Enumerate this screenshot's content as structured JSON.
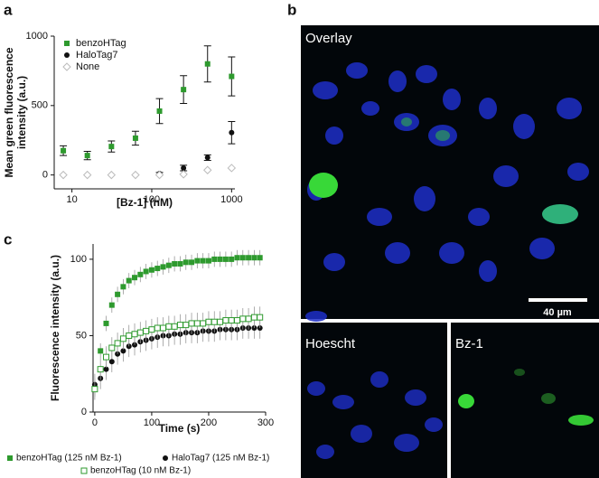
{
  "panels": {
    "a": "a",
    "b": "b",
    "c": "c"
  },
  "images": {
    "overlay": "Overlay",
    "hoechst": "Hoescht",
    "bz1": "Bz-1",
    "scale_bar": "40 µm"
  },
  "chart_data": [
    {
      "type": "scatter",
      "xlabel": "[Bz-1] (nM)",
      "ylabel": [
        "Mean green fluorescence",
        "intensity (a.u.)"
      ],
      "log_x": true,
      "xlim": [
        6,
        1100
      ],
      "xticks": [
        10,
        100,
        1000
      ],
      "ylim": [
        -100,
        1000
      ],
      "yticks": [
        0,
        500,
        1000
      ],
      "x": [
        7.8,
        15.6,
        31.25,
        62.5,
        125,
        250,
        500,
        1000
      ],
      "legend": "upper-left",
      "series": [
        {
          "name": "benzoHTag",
          "color": "#2e9a2e",
          "marker": "square",
          "values": [
            175,
            140,
            205,
            265,
            460,
            615,
            800,
            710
          ],
          "errors": [
            35,
            30,
            40,
            50,
            90,
            100,
            130,
            140
          ]
        },
        {
          "name": "HaloTag7",
          "color": "#111111",
          "marker": "circle",
          "values": [
            0,
            0,
            0,
            0,
            10,
            50,
            125,
            305
          ],
          "errors": [
            0,
            0,
            0,
            0,
            8,
            20,
            20,
            80
          ]
        },
        {
          "name": "None",
          "color": "#bbbbbb",
          "marker": "diamond",
          "values": [
            0,
            0,
            0,
            0,
            0,
            5,
            35,
            50
          ],
          "errors": [
            0,
            0,
            0,
            0,
            0,
            0,
            0,
            0
          ]
        }
      ]
    },
    {
      "type": "scatter",
      "xlabel": "Time (s)",
      "ylabel": [
        "Fluorescence intensity (a.u.)"
      ],
      "log_x": false,
      "xlim": [
        -3,
        300
      ],
      "xticks": [
        0,
        100,
        200,
        300
      ],
      "ylim": [
        0,
        110
      ],
      "yticks": [
        0,
        50,
        100
      ],
      "legend": "below",
      "x": [
        0,
        10,
        20,
        30,
        40,
        50,
        60,
        70,
        80,
        90,
        100,
        110,
        120,
        130,
        140,
        150,
        160,
        170,
        180,
        190,
        200,
        210,
        220,
        230,
        240,
        250,
        260,
        270,
        280,
        290
      ],
      "series": [
        {
          "name": "benzoHTag (125 nM Bz-1)",
          "color": "#2e9a2e",
          "marker": "square",
          "values": [
            15,
            40,
            58,
            70,
            77,
            82,
            86,
            88,
            90,
            92,
            93,
            94,
            95,
            96,
            97,
            97,
            98,
            98,
            99,
            99,
            99,
            100,
            100,
            100,
            100,
            101,
            101,
            101,
            101,
            101
          ],
          "errors": [
            5,
            5,
            5,
            5,
            5,
            5,
            5,
            5,
            5,
            5,
            5,
            5,
            5,
            5,
            5,
            5,
            5,
            5,
            5,
            5,
            5,
            5,
            5,
            5,
            5,
            5,
            5,
            5,
            5,
            5
          ]
        },
        {
          "name": "HaloTag7 (125 nM Bz-1)",
          "color": "#111111",
          "marker": "circle",
          "values": [
            18,
            22,
            28,
            33,
            38,
            40,
            43,
            44,
            46,
            47,
            48,
            49,
            50,
            50,
            51,
            51,
            52,
            52,
            52,
            53,
            53,
            53,
            54,
            54,
            54,
            54,
            55,
            55,
            55,
            55
          ],
          "errors": [
            7,
            7,
            7,
            7,
            7,
            7,
            7,
            7,
            7,
            7,
            7,
            7,
            7,
            7,
            7,
            7,
            7,
            7,
            7,
            7,
            7,
            7,
            7,
            7,
            7,
            7,
            7,
            7,
            7,
            7
          ]
        },
        {
          "name": "benzoHTag (10 nM Bz-1)",
          "color": "#2e9a2e",
          "marker": "open-square",
          "values": [
            15,
            28,
            36,
            42,
            45,
            48,
            50,
            51,
            52,
            53,
            54,
            55,
            55,
            56,
            56,
            57,
            57,
            58,
            58,
            58,
            59,
            59,
            59,
            60,
            60,
            60,
            61,
            61,
            62,
            62
          ],
          "errors": [
            7,
            7,
            7,
            7,
            7,
            7,
            7,
            7,
            7,
            7,
            7,
            7,
            7,
            7,
            7,
            7,
            7,
            7,
            7,
            7,
            7,
            7,
            7,
            7,
            7,
            7,
            7,
            7,
            7,
            7
          ]
        }
      ]
    }
  ]
}
